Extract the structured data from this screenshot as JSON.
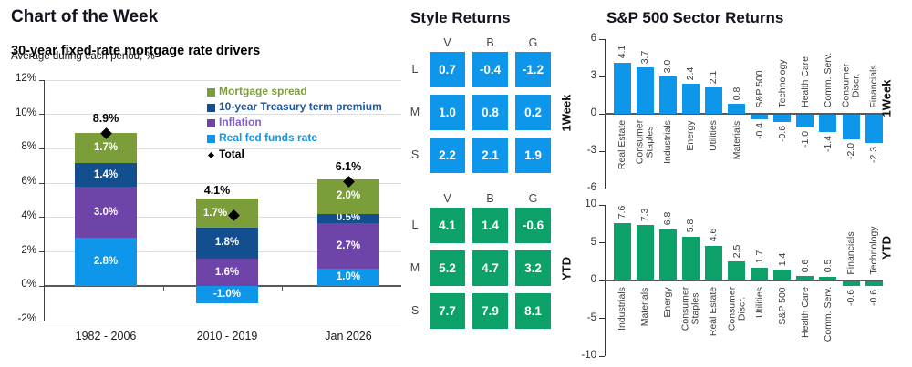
{
  "chart_data": [
    {
      "type": "stacked_bar",
      "panel_title": "Chart of the Week",
      "title": "30-year fixed-rate mortgage rate drivers",
      "subtitle": "Average during each period, %",
      "unit": "%",
      "ylim": [
        -2,
        12
      ],
      "ytick_step": 2,
      "ytick_labels": [
        "12%",
        "10%",
        "8%",
        "6%",
        "4%",
        "2%",
        "0%",
        "-2%"
      ],
      "grid": true,
      "legend_position": "upper-right-inside",
      "categories": [
        "1982 - 2006",
        "2010 - 2019",
        "Jan 2026"
      ],
      "series": [
        {
          "name": "Mortgage spread",
          "color": "#7C9E3A",
          "values": [
            1.7,
            1.7,
            2.0
          ]
        },
        {
          "name": "10-year Treasury term premium",
          "color": "#134E8F",
          "legend_color": "#1A57A8",
          "values": [
            1.4,
            1.8,
            0.5
          ]
        },
        {
          "name": "Inflation",
          "color": "#6F44A8",
          "legend_color": "#8161C9",
          "values": [
            3.0,
            1.6,
            2.7
          ]
        },
        {
          "name": "Real fed funds rate",
          "color": "#0E97EA",
          "values": [
            2.8,
            -1.0,
            1.0
          ]
        }
      ],
      "total": {
        "name": "Total",
        "color": "#000000",
        "marker": "diamond",
        "values": [
          8.9,
          4.1,
          6.1
        ]
      }
    },
    {
      "type": "heatmap",
      "panel_title": "Style Returns",
      "grids": [
        {
          "period": "1Week",
          "color": "#0E97EA",
          "cols": [
            "V",
            "B",
            "G"
          ],
          "rows": [
            "L",
            "M",
            "S"
          ],
          "values": [
            [
              0.7,
              -0.4,
              -1.2
            ],
            [
              1.0,
              0.8,
              0.2
            ],
            [
              2.2,
              2.1,
              1.9
            ]
          ]
        },
        {
          "period": "YTD",
          "color": "#0BA169",
          "cols": [
            "V",
            "B",
            "G"
          ],
          "rows": [
            "L",
            "M",
            "S"
          ],
          "values": [
            [
              4.1,
              1.4,
              -0.6
            ],
            [
              5.2,
              4.7,
              3.2
            ],
            [
              7.7,
              7.9,
              8.1
            ]
          ]
        }
      ]
    },
    {
      "type": "bar",
      "panel_title": "S&P 500 Sector Returns",
      "charts": [
        {
          "period": "1Week",
          "color": "#0E97EA",
          "ylim": [
            -6,
            6
          ],
          "yticks": [
            6,
            3,
            0,
            -3,
            -6
          ],
          "bars": [
            {
              "name": "Real Estate",
              "value": 4.1
            },
            {
              "name": "Consumer\nStaples",
              "value": 3.7
            },
            {
              "name": "Industrials",
              "value": 3.0
            },
            {
              "name": "Energy",
              "value": 2.4
            },
            {
              "name": "Utilities",
              "value": 2.1
            },
            {
              "name": "Materials",
              "value": 0.8
            },
            {
              "name": "S&P 500",
              "value": -0.4
            },
            {
              "name": "Technology",
              "value": -0.6
            },
            {
              "name": "Health Care",
              "value": -1.0
            },
            {
              "name": "Comm. Serv.",
              "value": -1.4
            },
            {
              "name": "Consumer\nDiscr.",
              "value": -2.0
            },
            {
              "name": "Financials",
              "value": -2.3
            }
          ]
        },
        {
          "period": "YTD",
          "color": "#0BA169",
          "ylim": [
            -10,
            10
          ],
          "yticks": [
            10,
            5,
            0,
            -5,
            -10
          ],
          "bars": [
            {
              "name": "Industrials",
              "value": 7.6
            },
            {
              "name": "Materials",
              "value": 7.3
            },
            {
              "name": "Energy",
              "value": 6.8
            },
            {
              "name": "Consumer\nStaples",
              "value": 5.8
            },
            {
              "name": "Real Estate",
              "value": 4.6
            },
            {
              "name": "Consumer\nDiscr.",
              "value": 2.5
            },
            {
              "name": "Utilities",
              "value": 1.7
            },
            {
              "name": "S&P 500",
              "value": 1.4
            },
            {
              "name": "Health Care",
              "value": 0.6
            },
            {
              "name": "Comm. Serv.",
              "value": 0.5
            },
            {
              "name": "Financials",
              "value": -0.6
            },
            {
              "name": "Technology",
              "value": -0.6
            }
          ]
        }
      ]
    }
  ]
}
